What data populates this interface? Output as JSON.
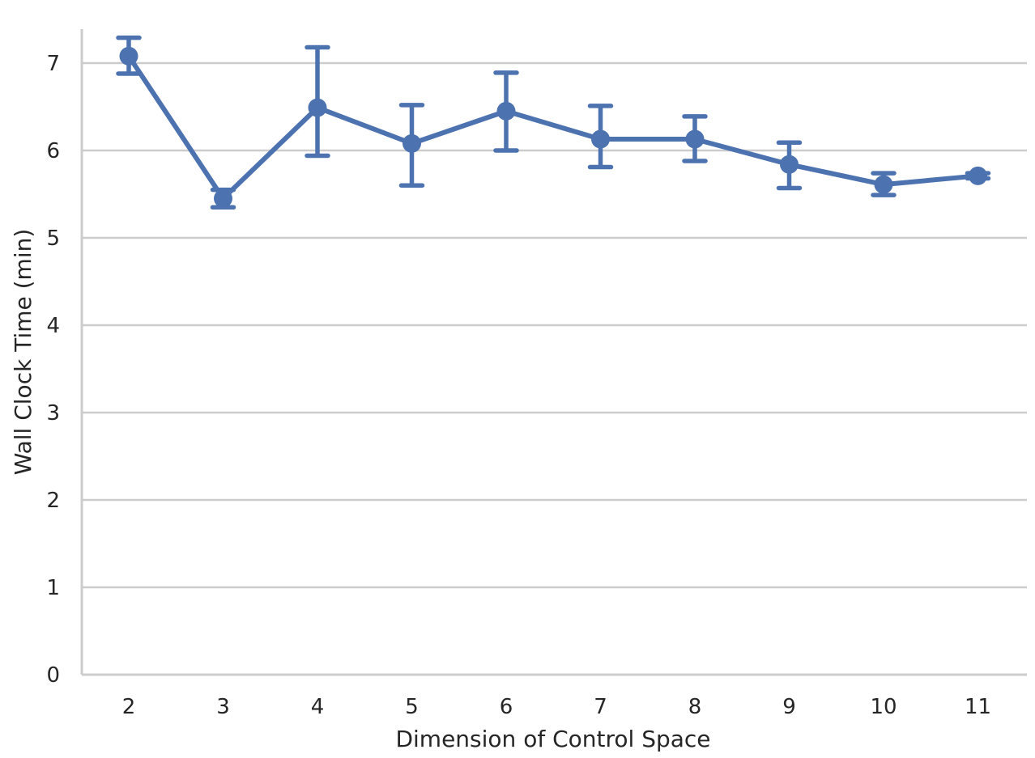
{
  "chart_data": {
    "type": "line",
    "xlabel": "Dimension of Control Space",
    "ylabel": "Wall Clock Time (min)",
    "categories": [
      "2",
      "3",
      "4",
      "5",
      "6",
      "7",
      "8",
      "9",
      "10",
      "11"
    ],
    "series": [
      {
        "values": [
          7.08,
          5.45,
          6.49,
          6.08,
          6.45,
          6.13,
          6.13,
          5.84,
          5.61,
          5.71
        ],
        "err_low": [
          6.88,
          5.35,
          5.94,
          5.6,
          6.0,
          5.81,
          5.88,
          5.57,
          5.49,
          5.68
        ],
        "err_high": [
          7.29,
          5.55,
          7.18,
          6.52,
          6.89,
          6.51,
          6.39,
          6.09,
          5.74,
          5.74
        ]
      }
    ],
    "yticks": [
      "0",
      "1",
      "2",
      "3",
      "4",
      "5",
      "6",
      "7"
    ],
    "ylim": [
      0,
      7.4
    ],
    "grid": true,
    "color": "#4c72b0"
  }
}
